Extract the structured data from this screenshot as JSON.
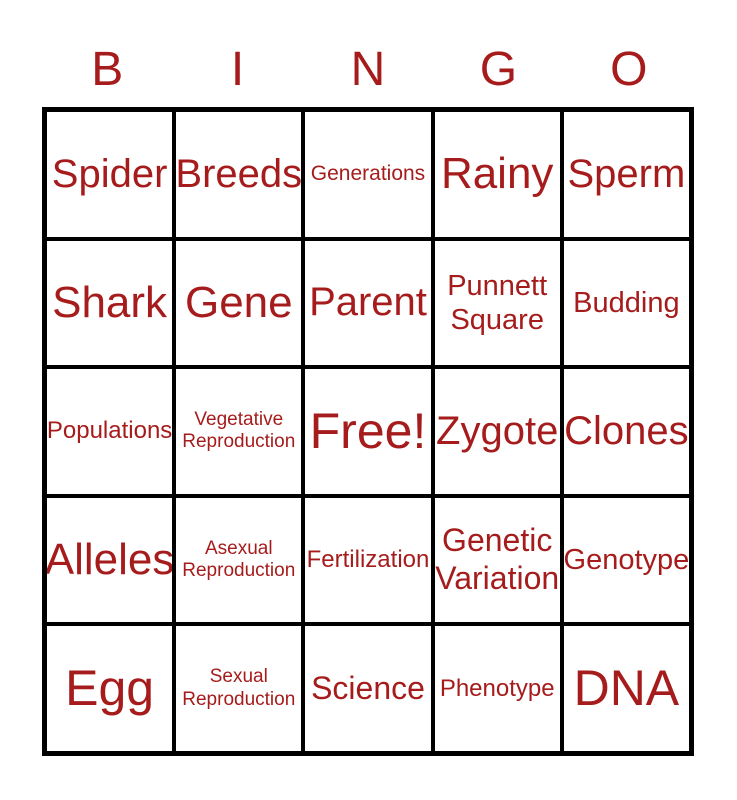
{
  "title": {
    "letters": [
      "B",
      "I",
      "N",
      "G",
      "O"
    ]
  },
  "colors": {
    "text": "#A61C1C",
    "grid_border": "#000000",
    "cell_background": "#ffffff",
    "page_background": "#ffffff"
  },
  "card": {
    "rows": 5,
    "columns": 5,
    "free_space_index": 12,
    "free_space_label": "Free!",
    "cells": [
      {
        "label": "Spider",
        "size": "xl"
      },
      {
        "label": "Breeds",
        "size": "xl"
      },
      {
        "label": "Generations",
        "size": "sm"
      },
      {
        "label": "Rainy",
        "size": "xxl"
      },
      {
        "label": "Sperm",
        "size": "xl"
      },
      {
        "label": "Shark",
        "size": "xxl"
      },
      {
        "label": "Gene",
        "size": "xxl"
      },
      {
        "label": "Parent",
        "size": "xl"
      },
      {
        "label": "Punnett Square",
        "size": "ml"
      },
      {
        "label": "Budding",
        "size": "ml"
      },
      {
        "label": "Populations",
        "size": "md"
      },
      {
        "label": "Vegetative Reproduction",
        "size": "xs"
      },
      {
        "label": "Free!",
        "size": "xxxl"
      },
      {
        "label": "Zygote",
        "size": "xl"
      },
      {
        "label": "Clones",
        "size": "xl"
      },
      {
        "label": "Alleles",
        "size": "xxl"
      },
      {
        "label": "Asexual Reproduction",
        "size": "xs"
      },
      {
        "label": "Fertilization",
        "size": "md"
      },
      {
        "label": "Genetic Variation",
        "size": "lg"
      },
      {
        "label": "Genotype",
        "size": "ml"
      },
      {
        "label": "Egg",
        "size": "xxxl"
      },
      {
        "label": "Sexual Reproduction",
        "size": "xs"
      },
      {
        "label": "Science",
        "size": "lg"
      },
      {
        "label": "Phenotype",
        "size": "md"
      },
      {
        "label": "DNA",
        "size": "xxxl"
      }
    ]
  }
}
